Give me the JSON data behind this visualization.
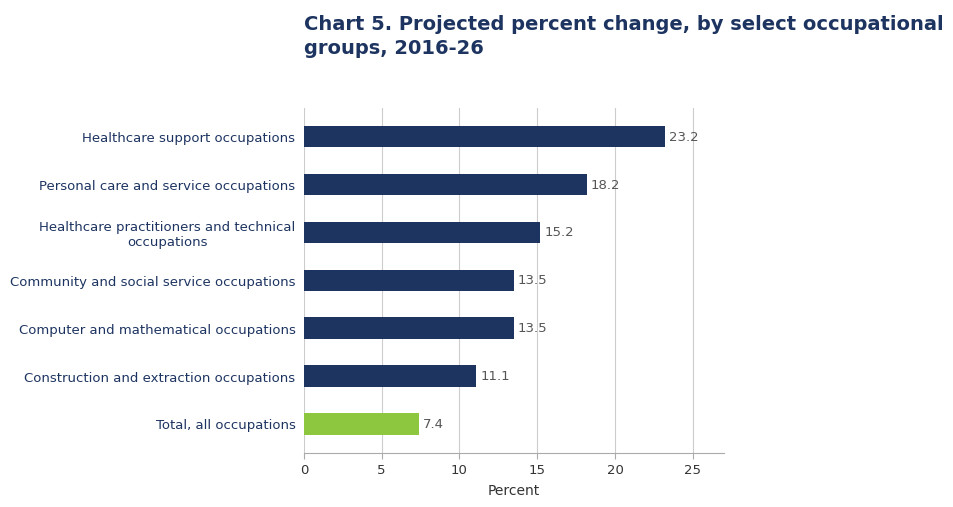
{
  "title_line1": "Chart 5. Projected percent change, by select occupational",
  "title_line2": "groups, 2016-26",
  "categories": [
    "Healthcare support occupations",
    "Personal care and service occupations",
    "Healthcare practitioners and technical\noccupations",
    "Community and social service occupations",
    "Computer and mathematical occupations",
    "Construction and extraction occupations",
    "Total, all occupations"
  ],
  "values": [
    23.2,
    18.2,
    15.2,
    13.5,
    13.5,
    11.1,
    7.4
  ],
  "bar_colors": [
    "#1d3461",
    "#1d3461",
    "#1d3461",
    "#1d3461",
    "#1d3461",
    "#1d3461",
    "#8dc63f"
  ],
  "xlabel": "Percent",
  "xlim": [
    0,
    27
  ],
  "xticks": [
    0,
    5,
    10,
    15,
    20,
    25
  ],
  "title_color": "#1d3461",
  "label_color": "#1d3461",
  "value_label_color": "#555555",
  "background_color": "#ffffff",
  "grid_color": "#cccccc",
  "title_fontsize": 14,
  "label_fontsize": 9.5,
  "value_fontsize": 9.5,
  "xlabel_fontsize": 10,
  "bar_height": 0.45
}
